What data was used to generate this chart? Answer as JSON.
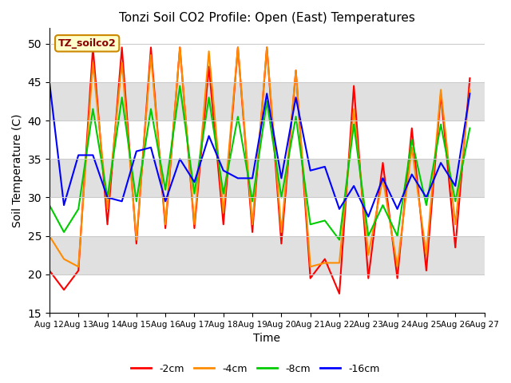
{
  "title": "Tonzi Soil CO2 Profile: Open (East) Temperatures",
  "xlabel": "Time",
  "ylabel": "Soil Temperature (C)",
  "ylim": [
    15,
    52
  ],
  "yticks": [
    15,
    20,
    25,
    30,
    35,
    40,
    45,
    50
  ],
  "legend_label": "TZ_soilco2",
  "series_labels": [
    "-2cm",
    "-4cm",
    "-8cm",
    "-16cm"
  ],
  "series_colors": [
    "#ff0000",
    "#ff8c00",
    "#00cc00",
    "#0000ff"
  ],
  "x": [
    0,
    0.5,
    1,
    1.5,
    2,
    2.5,
    3,
    3.5,
    4,
    4.5,
    5,
    5.5,
    6,
    6.5,
    7,
    7.5,
    8,
    8.5,
    9,
    9.5,
    10,
    10.5,
    11,
    11.5,
    12,
    12.5,
    13,
    13.5,
    14,
    14.5
  ],
  "x_labels": [
    "Aug 12",
    "Aug 13",
    "Aug 14",
    "Aug 15",
    "Aug 16",
    "Aug 17",
    "Aug 18",
    "Aug 19",
    "Aug 20",
    "Aug 21",
    "Aug 22",
    "Aug 23",
    "Aug 24",
    "Aug 25",
    "Aug 26",
    "Aug 27"
  ],
  "x_ticks": [
    0,
    1,
    2,
    3,
    4,
    5,
    6,
    7,
    8,
    9,
    10,
    11,
    12,
    13,
    14,
    15
  ],
  "red": [
    20.5,
    18.0,
    20.5,
    49.5,
    26.5,
    49.5,
    24.0,
    49.5,
    26.0,
    49.5,
    26.0,
    47.0,
    26.5,
    49.5,
    25.5,
    49.5,
    24.0,
    46.5,
    19.5,
    22.0,
    17.5,
    44.5,
    19.5,
    34.5,
    19.5,
    39.0,
    20.5,
    43.5,
    23.5,
    45.5
  ],
  "orange": [
    25.0,
    22.0,
    21.0,
    47.5,
    28.5,
    47.5,
    24.5,
    48.5,
    26.5,
    49.5,
    26.5,
    49.0,
    28.0,
    49.5,
    26.5,
    49.5,
    25.5,
    46.5,
    21.0,
    21.5,
    21.5,
    41.5,
    22.5,
    32.5,
    21.0,
    36.5,
    22.5,
    44.0,
    26.5,
    44.0
  ],
  "green": [
    29.0,
    25.5,
    28.5,
    41.5,
    30.0,
    43.0,
    29.5,
    41.5,
    31.0,
    44.5,
    30.5,
    43.0,
    30.5,
    40.5,
    29.5,
    42.5,
    30.0,
    40.5,
    26.5,
    27.0,
    24.5,
    39.5,
    25.0,
    29.0,
    25.0,
    37.5,
    29.0,
    39.5,
    29.5,
    39.0
  ],
  "blue": [
    45.0,
    29.0,
    35.5,
    35.5,
    30.0,
    29.5,
    36.0,
    36.5,
    29.5,
    35.0,
    32.0,
    38.0,
    33.5,
    32.5,
    32.5,
    43.5,
    32.5,
    43.0,
    33.5,
    34.0,
    28.5,
    31.5,
    27.5,
    32.5,
    28.5,
    33.0,
    30.0,
    34.5,
    31.5,
    43.5
  ],
  "band_color": "#e0e0e0",
  "band_ranges": [
    [
      20,
      25
    ],
    [
      30,
      35
    ],
    [
      40,
      45
    ]
  ],
  "bg_color": "#ffffff"
}
